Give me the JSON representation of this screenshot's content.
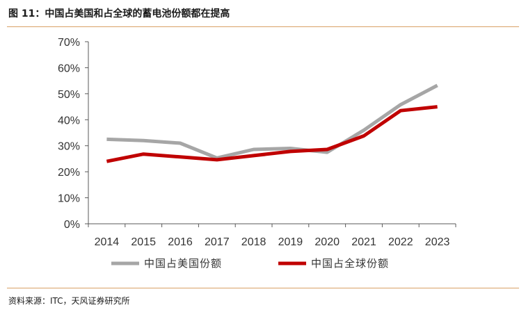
{
  "header": {
    "title": "图 11：中国占美国和占全球的蓄电池份额都在提高"
  },
  "footer": {
    "source": "资料来源：ITC，天风证券研究所"
  },
  "chart_data": {
    "type": "line",
    "title": "图 11：中国占美国和占全球的蓄电池份额都在提高",
    "xlabel": "",
    "ylabel": "",
    "categories": [
      "2014",
      "2015",
      "2016",
      "2017",
      "2018",
      "2019",
      "2020",
      "2021",
      "2022",
      "2023"
    ],
    "ylim": [
      0,
      70
    ],
    "yticks": [
      "0%",
      "10%",
      "20%",
      "30%",
      "40%",
      "50%",
      "60%",
      "70%"
    ],
    "grid": false,
    "legend": "bottom",
    "series": [
      {
        "name": "中国占美国份额",
        "color": "#a6a6a6",
        "values": [
          32.5,
          32,
          31,
          25.3,
          28.6,
          29,
          27.5,
          36,
          45.8,
          53.2
        ]
      },
      {
        "name": "中国占全球份额",
        "color": "#c00000",
        "values": [
          24,
          26.8,
          25.7,
          24.6,
          26.2,
          27.8,
          28.6,
          33.8,
          43.5,
          45
        ]
      }
    ]
  }
}
